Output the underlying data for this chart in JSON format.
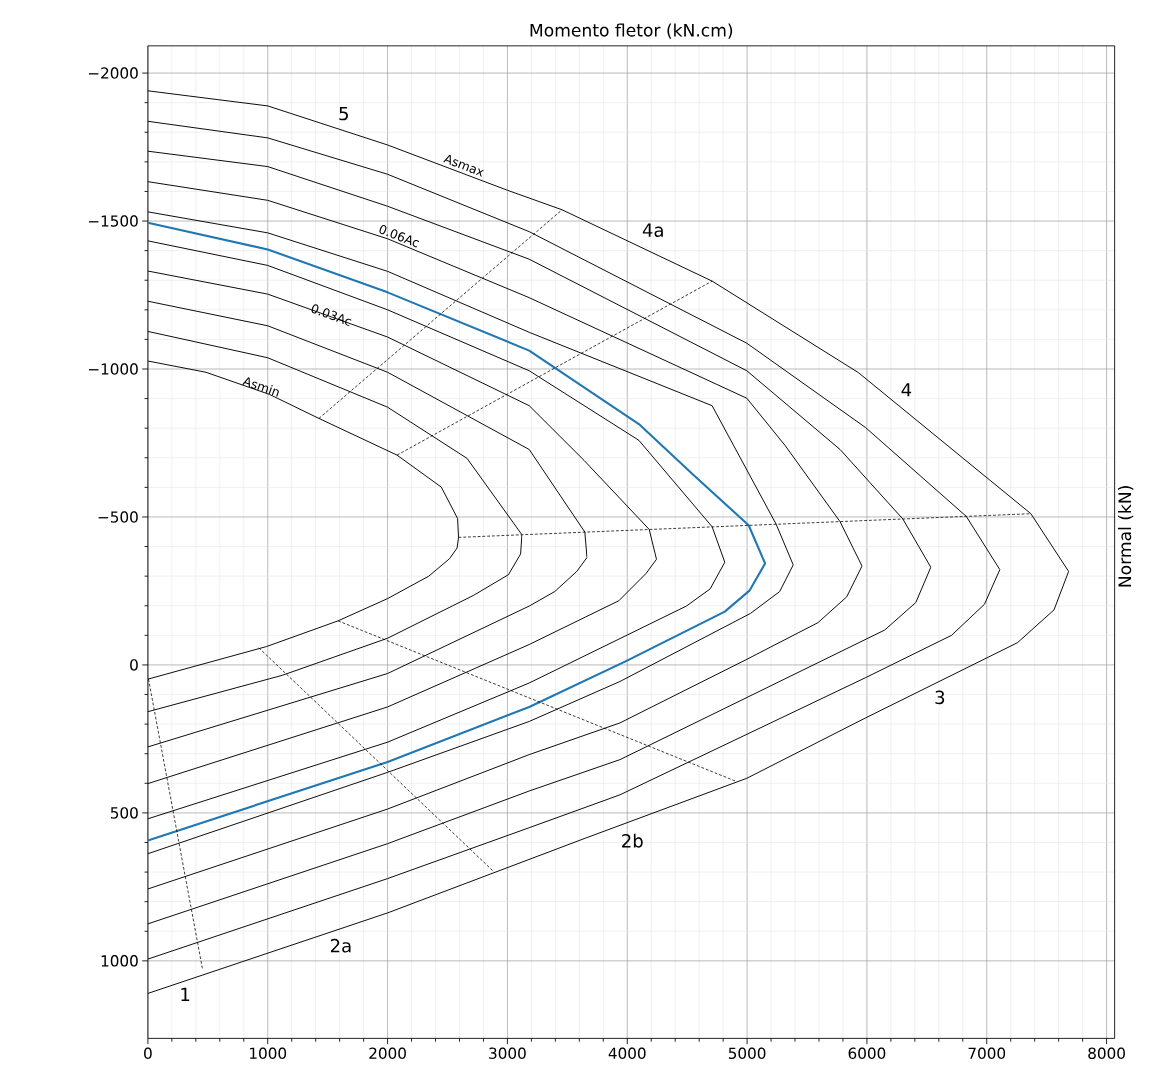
{
  "chart_data": {
    "type": "line",
    "xlabel": "Momento fletor (kN.cm)",
    "ylabel": "Normal (kN)",
    "xlim": [
      0,
      8067
    ],
    "ylim": [
      1262,
      -2092
    ],
    "xticks": [
      0,
      1000,
      2000,
      3000,
      4000,
      5000,
      6000,
      7000,
      8000
    ],
    "yticks": [
      {
        "value": -2000,
        "label": "−2000"
      },
      {
        "value": -1500,
        "label": "−1500"
      },
      {
        "value": -1000,
        "label": "−1000"
      },
      {
        "value": -500,
        "label": "−500"
      },
      0,
      500,
      1000
    ],
    "grid": true,
    "series": [
      {
        "color": "#000000",
        "line_style": "solid",
        "x": [
          0,
          484,
          1015,
          1427,
          2079,
          2448,
          2584,
          2592,
          2580,
          2517,
          2344,
          1999,
          1587,
          989,
          0
        ],
        "values": [
          -1027,
          -989,
          -914,
          -833,
          -709,
          -601,
          -495,
          -431,
          -395,
          -359,
          -300,
          -224,
          -149,
          -62,
          48
        ]
      },
      {
        "color": "#000000",
        "line_style": "solid",
        "x": [
          0,
          1000,
          2000,
          2663,
          3121,
          3110,
          3009,
          2717,
          1999,
          1122,
          0
        ],
        "values": [
          -1127,
          -1038,
          -871,
          -698,
          -440,
          -375,
          -305,
          -235,
          -90,
          35,
          158
        ]
      },
      {
        "color": "#000000",
        "line_style": "solid",
        "x": [
          0,
          1000,
          2000,
          3182,
          3646,
          3664,
          3579,
          3395,
          3182,
          2000,
          0
        ],
        "values": [
          -1229,
          -1146,
          -989,
          -728,
          -449,
          -363,
          -316,
          -248,
          -199,
          29,
          277
        ]
      },
      {
        "color": "#000000",
        "line_style": "solid",
        "x": [
          0,
          1000,
          2000,
          3182,
          3640,
          4183,
          4244,
          4159,
          3930,
          3182,
          2000,
          0
        ],
        "values": [
          -1331,
          -1253,
          -1108,
          -876,
          -691,
          -458,
          -357,
          -310,
          -217,
          -69,
          142,
          401
        ]
      },
      {
        "color": "#000000",
        "line_style": "solid",
        "x": [
          0,
          1000,
          2000,
          3182,
          4097,
          4708,
          4814,
          4692,
          4494,
          3182,
          2000,
          0
        ],
        "values": [
          -1433,
          -1350,
          -1200,
          -994,
          -759,
          -467,
          -347,
          -257,
          -199,
          61,
          261,
          520
        ]
      },
      {
        "color": "#000000",
        "line_style": "solid",
        "x": [
          0,
          1000,
          2000,
          3182,
          4708,
          5242,
          5385,
          5272,
          5028,
          3939,
          3182,
          2000,
          0
        ],
        "values": [
          -1531,
          -1460,
          -1330,
          -1124,
          -876,
          -476,
          -338,
          -248,
          -174,
          56,
          191,
          363,
          638
        ]
      },
      {
        "color": "#000000",
        "line_style": "solid",
        "x": [
          0,
          1000,
          2000,
          3182,
          4998,
          5320,
          5776,
          5959,
          5831,
          5592,
          4998,
          3939,
          3182,
          2000,
          0
        ],
        "values": [
          -1633,
          -1570,
          -1440,
          -1241,
          -901,
          -740,
          -484,
          -334,
          -230,
          -143,
          -19,
          196,
          303,
          487,
          757
        ]
      },
      {
        "color": "#000000",
        "line_style": "solid",
        "x": [
          0,
          1000,
          2000,
          3182,
          4998,
          5776,
          6300,
          6533,
          6408,
          6149,
          3939,
          3182,
          2000,
          0
        ],
        "values": [
          -1736,
          -1684,
          -1550,
          -1371,
          -994,
          -728,
          -493,
          -330,
          -211,
          -118,
          320,
          426,
          604,
          875
        ]
      },
      {
        "color": "#000000",
        "line_style": "solid",
        "x": [
          0,
          1000,
          2000,
          3182,
          4998,
          5989,
          6829,
          7109,
          6981,
          6706,
          5989,
          3939,
          3182,
          2000,
          0
        ],
        "values": [
          -1837,
          -1781,
          -1658,
          -1464,
          -1087,
          -802,
          -502,
          -322,
          -205,
          -100,
          43,
          439,
          550,
          722,
          994
        ]
      },
      {
        "color": "#000000",
        "line_style": "solid",
        "x": [
          0,
          1000,
          2000,
          3000,
          3456,
          4708,
          5928,
          7368,
          7683,
          7561,
          7256,
          5989,
          4998,
          3640,
          2000,
          0
        ],
        "values": [
          -1940,
          -1889,
          -1757,
          -1604,
          -1538,
          -1297,
          -988,
          -511,
          -316,
          -186,
          -75,
          179,
          383,
          587,
          838,
          1110
        ]
      },
      {
        "color": "#1f77b4",
        "line_style": "solid",
        "x": [
          0,
          1000,
          2000,
          3182,
          4097,
          4555,
          5013,
          5150,
          5022,
          4814,
          3990,
          3182,
          2000,
          0
        ],
        "values": [
          -1494,
          -1404,
          -1259,
          -1062,
          -814,
          -641,
          -472,
          -343,
          -252,
          -180,
          -13,
          142,
          328,
          593
        ]
      },
      {
        "color": "#000000",
        "line_style": "dashed",
        "x": [
          1427,
          3456
        ],
        "values": [
          -833,
          -1538
        ]
      },
      {
        "color": "#000000",
        "line_style": "dashed",
        "x": [
          2079,
          4708
        ],
        "values": [
          -709,
          -1297
        ]
      },
      {
        "color": "#000000",
        "line_style": "dashed",
        "x": [
          2592,
          7368
        ],
        "values": [
          -431,
          -511
        ]
      },
      {
        "color": "#000000",
        "line_style": "dashed",
        "x": [
          1587,
          4900
        ],
        "values": [
          -149,
          392
        ]
      },
      {
        "color": "#000000",
        "line_style": "dashed",
        "x": [
          925,
          2895
        ],
        "values": [
          -58,
          702
        ]
      },
      {
        "color": "#000000",
        "line_style": "dashed",
        "x": [
          5,
          457
        ],
        "values": [
          48,
          1031
        ]
      }
    ],
    "annotations": [
      "5",
      "4a",
      "4",
      "3",
      "2b",
      "2a",
      "1",
      "Asmax",
      "0.06Ac",
      {
        "text": "0.03Ac",
        "x": 1531,
        "y": -1183
      },
      {
        "text": "Asmin",
        "x": 949,
        "y": -941
      }
    ]
  }
}
